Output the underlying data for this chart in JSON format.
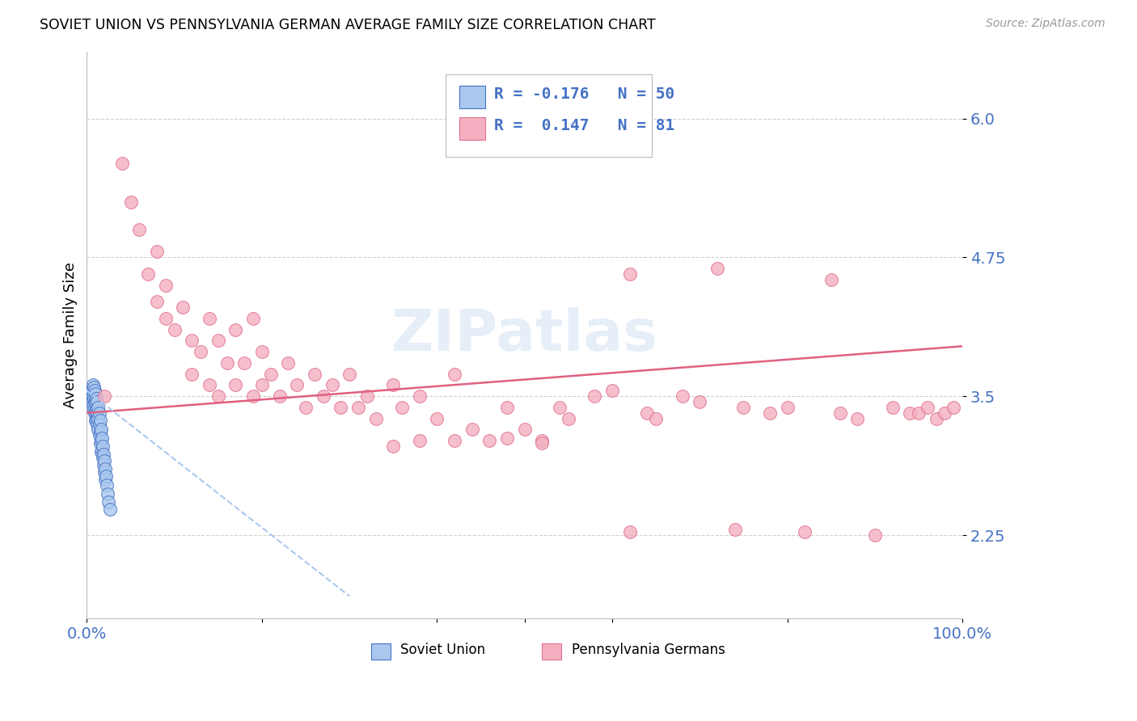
{
  "title": "SOVIET UNION VS PENNSYLVANIA GERMAN AVERAGE FAMILY SIZE CORRELATION CHART",
  "source": "Source: ZipAtlas.com",
  "ylabel": "Average Family Size",
  "yticks": [
    2.25,
    3.5,
    4.75,
    6.0
  ],
  "ytick_color": "#4472c4",
  "watermark": "ZIPatlas",
  "legend": {
    "soviet_r": "-0.176",
    "soviet_n": "50",
    "pg_r": "0.147",
    "pg_n": "81"
  },
  "soviet_color": "#aac8ee",
  "soviet_edge": "#4472c4",
  "pg_color": "#f4b0c0",
  "pg_edge": "#e07090",
  "trendline_pg_color": "#e06080",
  "trendline_su_color": "#aac8ee",
  "background_color": "#ffffff",
  "grid_color": "#d0d0d0",
  "ylim": [
    1.5,
    6.6
  ],
  "xlim": [
    0.0,
    1.0
  ],
  "soviet_x": [
    0.004,
    0.005,
    0.006,
    0.006,
    0.007,
    0.007,
    0.007,
    0.008,
    0.008,
    0.008,
    0.009,
    0.009,
    0.009,
    0.01,
    0.01,
    0.01,
    0.01,
    0.011,
    0.011,
    0.011,
    0.012,
    0.012,
    0.012,
    0.013,
    0.013,
    0.013,
    0.014,
    0.014,
    0.014,
    0.015,
    0.015,
    0.015,
    0.016,
    0.016,
    0.016,
    0.017,
    0.017,
    0.018,
    0.018,
    0.019,
    0.019,
    0.02,
    0.02,
    0.021,
    0.021,
    0.022,
    0.023,
    0.024,
    0.025,
    0.026
  ],
  "soviet_y": [
    3.52,
    3.48,
    3.55,
    3.45,
    3.6,
    3.5,
    3.42,
    3.58,
    3.48,
    3.38,
    3.55,
    3.45,
    3.35,
    3.52,
    3.44,
    3.36,
    3.28,
    3.48,
    3.38,
    3.28,
    3.45,
    3.35,
    3.25,
    3.4,
    3.3,
    3.2,
    3.35,
    3.25,
    3.15,
    3.28,
    3.18,
    3.08,
    3.2,
    3.1,
    3.0,
    3.12,
    3.02,
    3.05,
    2.95,
    2.98,
    2.88,
    2.92,
    2.82,
    2.85,
    2.75,
    2.78,
    2.7,
    2.62,
    2.55,
    2.48
  ],
  "pg_x": [
    0.02,
    0.04,
    0.05,
    0.06,
    0.07,
    0.08,
    0.08,
    0.09,
    0.09,
    0.1,
    0.11,
    0.12,
    0.12,
    0.13,
    0.14,
    0.14,
    0.15,
    0.15,
    0.16,
    0.17,
    0.17,
    0.18,
    0.19,
    0.19,
    0.2,
    0.2,
    0.21,
    0.22,
    0.23,
    0.24,
    0.25,
    0.26,
    0.27,
    0.28,
    0.29,
    0.3,
    0.31,
    0.32,
    0.33,
    0.35,
    0.36,
    0.38,
    0.4,
    0.42,
    0.44,
    0.46,
    0.48,
    0.5,
    0.52,
    0.54,
    0.55,
    0.58,
    0.6,
    0.62,
    0.64,
    0.65,
    0.68,
    0.7,
    0.72,
    0.74,
    0.75,
    0.78,
    0.8,
    0.82,
    0.85,
    0.86,
    0.88,
    0.9,
    0.92,
    0.94,
    0.95,
    0.96,
    0.97,
    0.98,
    0.99,
    0.62,
    0.38,
    0.52,
    0.48,
    0.42,
    0.35
  ],
  "pg_y": [
    3.5,
    5.6,
    5.25,
    5.0,
    4.6,
    4.35,
    4.8,
    4.2,
    4.5,
    4.1,
    4.3,
    4.0,
    3.7,
    3.9,
    4.2,
    3.6,
    4.0,
    3.5,
    3.8,
    3.6,
    4.1,
    3.8,
    3.5,
    4.2,
    3.9,
    3.6,
    3.7,
    3.5,
    3.8,
    3.6,
    3.4,
    3.7,
    3.5,
    3.6,
    3.4,
    3.7,
    3.4,
    3.5,
    3.3,
    3.6,
    3.4,
    3.5,
    3.3,
    3.7,
    3.2,
    3.1,
    3.4,
    3.2,
    3.1,
    3.4,
    3.3,
    3.5,
    3.55,
    4.6,
    3.35,
    3.3,
    3.5,
    3.45,
    4.65,
    2.3,
    3.4,
    3.35,
    3.4,
    2.28,
    4.55,
    3.35,
    3.3,
    2.25,
    3.4,
    3.35,
    3.35,
    3.4,
    3.3,
    3.35,
    3.4,
    2.28,
    3.1,
    3.08,
    3.12,
    3.1,
    3.05
  ],
  "pg_trend_x": [
    0.0,
    1.0
  ],
  "pg_trend_y": [
    3.35,
    3.95
  ],
  "su_trend_x": [
    0.0,
    0.3
  ],
  "su_trend_y": [
    3.55,
    1.7
  ]
}
